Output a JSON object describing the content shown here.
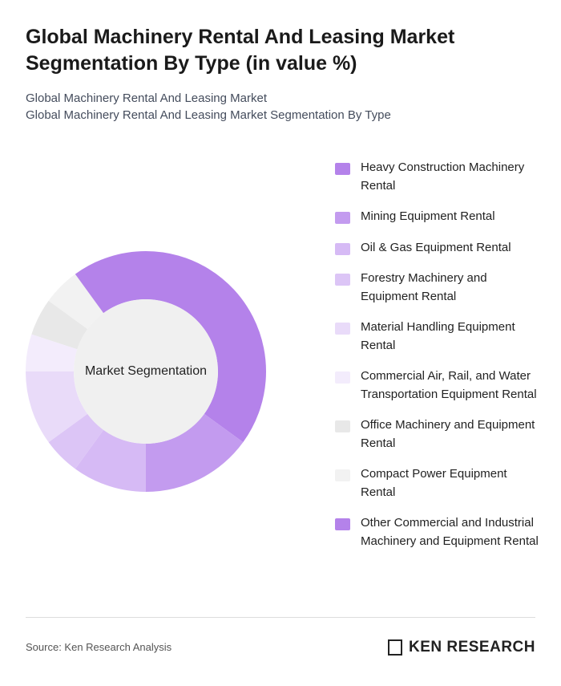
{
  "chart_data": {
    "type": "donut",
    "title": "Global Machinery Rental And Leasing Market Segmentation By Type (in value %)",
    "subtitle": [
      "Global Machinery Rental And Leasing Market",
      "Global Machinery Rental And Leasing Market Segmentation By Type"
    ],
    "center_label": "Market Segmentation",
    "categories": [
      "Heavy Construction Machinery Rental",
      "Mining Equipment Rental",
      "Oil & Gas Equipment Rental",
      "Forestry Machinery and Equipment Rental",
      "Material Handling Equipment Rental",
      "Commercial Air, Rail, and Water Transportation Equipment Rental",
      "Office Machinery and Equipment Rental",
      "Compact Power Equipment Rental",
      "Other Commercial and Industrial Machinery and Equipment Rental"
    ],
    "values": [
      35,
      15,
      10,
      5,
      10,
      5,
      5,
      5,
      10
    ],
    "colors": [
      "#b482ea",
      "#c39bef",
      "#d6baf5",
      "#dcc5f6",
      "#e9dbf9",
      "#f3ecfc",
      "#e8e8e8",
      "#f2f2f2",
      "#b482ea"
    ]
  },
  "source": "Source: Ken Research Analysis",
  "brand": "KEN RESEARCH"
}
